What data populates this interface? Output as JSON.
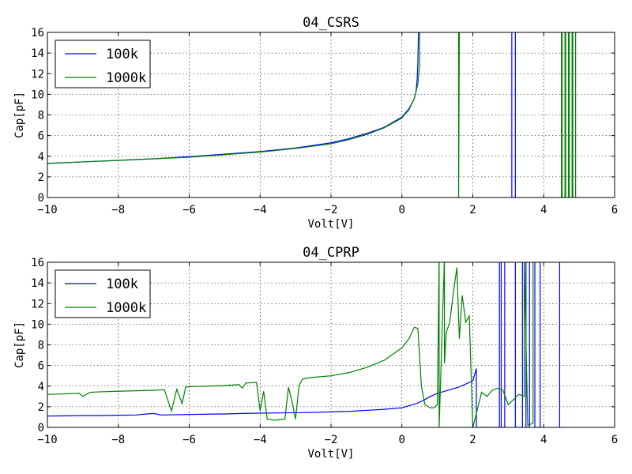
{
  "chart_data": [
    {
      "type": "line",
      "title": "04_CSRS",
      "xlabel": "Volt[V]",
      "ylabel": "Cap[pF]",
      "xlim": [
        -10,
        6
      ],
      "ylim": [
        0,
        16
      ],
      "xticks": [
        -10,
        -8,
        -6,
        -4,
        -2,
        0,
        2,
        4,
        6
      ],
      "xtick_labels": [
        "−10",
        "−8",
        "−6",
        "−4",
        "−2",
        "0",
        "2",
        "4",
        "6"
      ],
      "yticks": [
        0,
        2,
        4,
        6,
        8,
        10,
        12,
        14,
        16
      ],
      "ytick_labels": [
        "0",
        "2",
        "4",
        "6",
        "8",
        "10",
        "12",
        "14",
        "16"
      ],
      "grid": true,
      "legend_position": "top-left",
      "series": [
        {
          "name": "100k",
          "color": "#0000ff",
          "x": [
            -10,
            -9,
            -8,
            -7,
            -6,
            -5,
            -4,
            -3,
            -2,
            -1.5,
            -1,
            -0.5,
            0,
            0.2,
            0.35,
            0.4,
            0.43,
            0.45,
            0.47,
            0.47,
            0.48,
            3.1,
            3.1,
            3.2,
            3.2
          ],
          "y": [
            3.3,
            3.45,
            3.6,
            3.75,
            3.95,
            4.2,
            4.45,
            4.8,
            5.3,
            5.7,
            6.2,
            6.8,
            7.8,
            8.6,
            9.6,
            10.3,
            11.5,
            13.0,
            16.5,
            16.5,
            16.5,
            16.5,
            0,
            0,
            16.5
          ]
        },
        {
          "name": "1000k",
          "color": "#008000",
          "x": [
            -10,
            -9,
            -8,
            -7,
            -6,
            -5,
            -4,
            -3,
            -2,
            -1.5,
            -1,
            -0.5,
            0,
            0.2,
            0.35,
            0.45,
            0.5,
            0.5,
            0.52,
            1.6,
            1.6,
            1.62,
            4.5,
            4.5,
            4.52,
            4.52,
            4.6,
            4.6,
            4.62,
            4.62,
            4.7,
            4.7,
            4.72,
            4.72,
            4.8,
            4.8,
            4.82,
            4.82,
            4.9,
            4.9
          ],
          "y": [
            3.3,
            3.45,
            3.6,
            3.75,
            3.9,
            4.15,
            4.4,
            4.75,
            5.2,
            5.6,
            6.1,
            6.75,
            7.7,
            8.5,
            9.6,
            11.0,
            12.8,
            16.5,
            16.5,
            16.5,
            0,
            16.5,
            16.5,
            0,
            0,
            16.5,
            16.5,
            0,
            0,
            16.5,
            16.5,
            0,
            0,
            16.5,
            16.5,
            0,
            0,
            16.5,
            16.5,
            0
          ]
        }
      ]
    },
    {
      "type": "line",
      "title": "04_CPRP",
      "xlabel": "Volt[V]",
      "ylabel": "Cap[pF]",
      "xlim": [
        -10,
        6
      ],
      "ylim": [
        0,
        16
      ],
      "xticks": [
        -10,
        -8,
        -6,
        -4,
        -2,
        0,
        2,
        4,
        6
      ],
      "xtick_labels": [
        "−10",
        "−8",
        "−6",
        "−4",
        "−2",
        "0",
        "2",
        "4",
        "6"
      ],
      "yticks": [
        0,
        2,
        4,
        6,
        8,
        10,
        12,
        14,
        16
      ],
      "ytick_labels": [
        "0",
        "2",
        "4",
        "6",
        "8",
        "10",
        "12",
        "14",
        "16"
      ],
      "grid": true,
      "legend_position": "top-left",
      "series": [
        {
          "name": "100k",
          "color": "#0000ff",
          "x": [
            -10,
            -9.5,
            -9,
            -8.5,
            -8,
            -7.5,
            -7.2,
            -7,
            -6.8,
            -6.5,
            -6,
            -5.5,
            -5,
            -4.5,
            -4,
            -3.5,
            -3,
            -2.5,
            -2,
            -1.5,
            -1,
            -0.5,
            0,
            0.2,
            0.4,
            0.6,
            0.8,
            1.0,
            1.2,
            1.4,
            1.6,
            1.8,
            2.0,
            2.1,
            2.1,
            2.15,
            2.75,
            2.75,
            2.8,
            2.8,
            2.9,
            2.9,
            3.2,
            3.2,
            3.4,
            3.4,
            3.5,
            3.5,
            3.6,
            3.6,
            3.75,
            3.75,
            3.9,
            3.9,
            4.45,
            4.45
          ],
          "y": [
            1.1,
            1.12,
            1.15,
            1.15,
            1.18,
            1.2,
            1.3,
            1.35,
            1.2,
            1.22,
            1.25,
            1.28,
            1.3,
            1.35,
            1.38,
            1.4,
            1.42,
            1.45,
            1.5,
            1.55,
            1.65,
            1.75,
            1.9,
            2.1,
            2.3,
            2.6,
            3.0,
            3.3,
            3.5,
            3.7,
            3.9,
            4.2,
            4.5,
            5.7,
            0,
            0,
            0,
            16.5,
            16.5,
            0,
            0,
            16.5,
            16.5,
            0,
            0,
            16.5,
            16.5,
            0,
            0,
            16.5,
            16.5,
            0,
            0,
            16.5,
            16.5,
            0
          ]
        },
        {
          "name": "1000k",
          "color": "#008000",
          "x": [
            -10,
            -9.5,
            -9.1,
            -9.0,
            -8.8,
            -8.5,
            -8,
            -7.5,
            -7,
            -6.7,
            -6.5,
            -6.35,
            -6.2,
            -6.1,
            -6.0,
            -5.5,
            -5,
            -4.6,
            -4.5,
            -4.4,
            -4.1,
            -4.0,
            -3.9,
            -3.8,
            -3.6,
            -3.3,
            -3.2,
            -3.1,
            -3.0,
            -2.9,
            -2.8,
            -2.5,
            -2,
            -1.5,
            -1,
            -0.5,
            0,
            0.2,
            0.35,
            0.45,
            0.55,
            0.65,
            0.8,
            0.9,
            1.0,
            1.05,
            1.05,
            1.2,
            1.2,
            1.25,
            1.35,
            1.45,
            1.55,
            1.62,
            1.7,
            1.8,
            1.9,
            2.0,
            2.0,
            2.25,
            2.4,
            2.55,
            2.7,
            2.85,
            3.0,
            3.15,
            3.3,
            3.45,
            3.45,
            3.55,
            3.7,
            3.7
          ],
          "y": [
            3.2,
            3.25,
            3.3,
            3.0,
            3.4,
            3.45,
            3.5,
            3.55,
            3.6,
            3.65,
            1.6,
            3.7,
            2.3,
            3.9,
            3.95,
            4.0,
            4.05,
            4.15,
            3.8,
            4.3,
            4.35,
            1.6,
            3.5,
            0.8,
            0.7,
            0.8,
            3.9,
            2.5,
            0.8,
            4.1,
            4.7,
            4.85,
            5.0,
            5.3,
            5.8,
            6.5,
            7.7,
            8.6,
            9.7,
            9.6,
            4.0,
            2.2,
            1.9,
            1.9,
            2.2,
            16.5,
            0,
            16.5,
            6.2,
            9.2,
            10.2,
            13.0,
            15.5,
            8.6,
            12.8,
            10.2,
            10.8,
            0,
            0,
            3.4,
            3.0,
            3.6,
            3.8,
            3.6,
            2.2,
            2.7,
            3.2,
            3.0,
            16.5,
            0.2,
            0.4,
            16.5
          ]
        }
      ]
    }
  ]
}
